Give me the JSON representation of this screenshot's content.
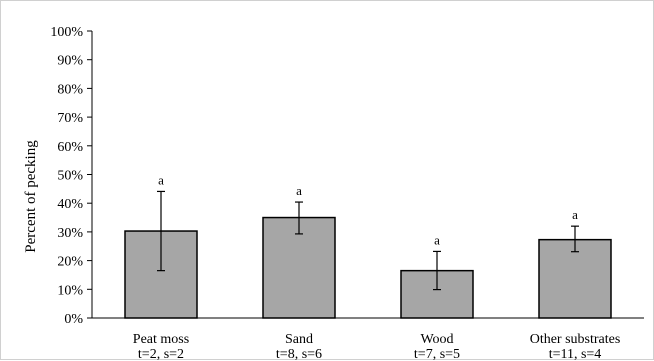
{
  "chart_data": {
    "type": "bar",
    "title": "",
    "xlabel": "",
    "ylabel": "Percent of pecking",
    "ylim": [
      0,
      100
    ],
    "yticks": [
      0,
      10,
      20,
      30,
      40,
      50,
      60,
      70,
      80,
      90,
      100
    ],
    "ytick_labels": [
      "0%",
      "10%",
      "20%",
      "30%",
      "40%",
      "50%",
      "60%",
      "70%",
      "80%",
      "90%",
      "100%"
    ],
    "categories": [
      "Peat moss",
      "Sand",
      "Wood",
      "Other substrates"
    ],
    "category_sublabels": [
      "t=2, s=2",
      "t=8, s=6",
      "t=7, s=5",
      "t=11, s=4"
    ],
    "values": [
      30.3,
      35.0,
      16.5,
      27.3
    ],
    "error_low": [
      16.5,
      29.3,
      9.9,
      23.1
    ],
    "error_high": [
      44.1,
      40.4,
      23.2,
      32.0
    ],
    "significance_letters": [
      "a",
      "a",
      "a",
      "a"
    ],
    "grid": false,
    "legend": "none",
    "bar_color": "#a6a6a6",
    "bar_edge_color": "#000000"
  }
}
